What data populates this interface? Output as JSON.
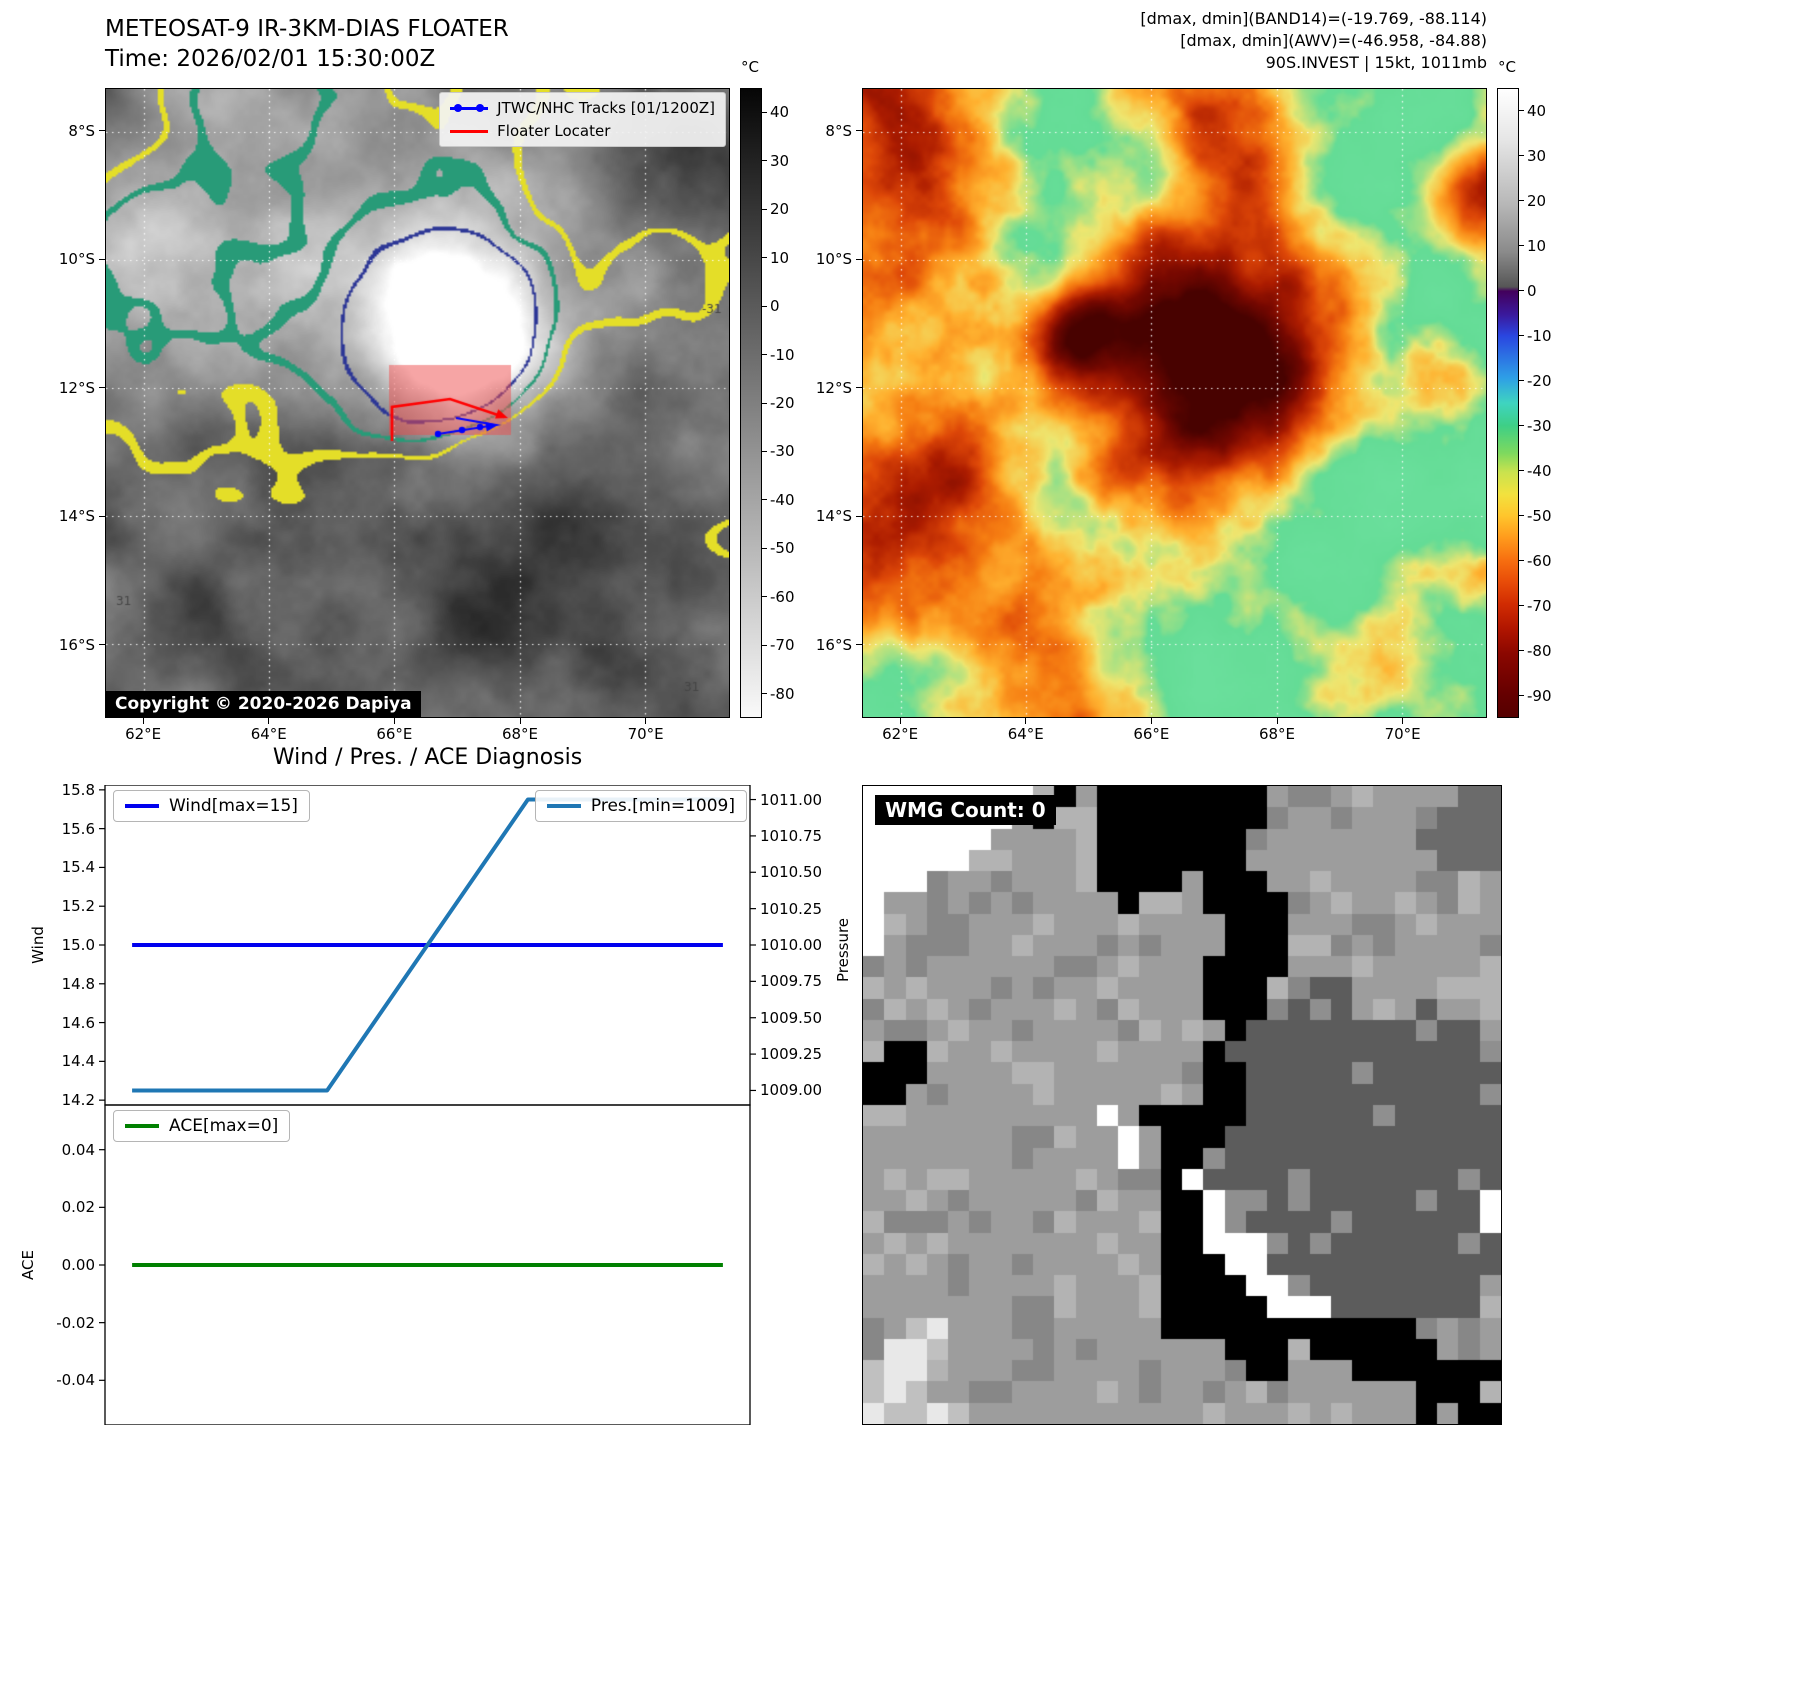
{
  "ir_panel": {
    "title_line1": "METEOSAT-9 IR-3KM-DIAS FLOATER",
    "title_line2": "Time: 2026/02/01 15:30:00Z",
    "legend": {
      "jtwc_label": "JTWC/NHC Tracks [01/1200Z]",
      "jtwc_color": "#0000ff",
      "floater_label": "Floater Locater",
      "floater_color": "#ff0000"
    },
    "floater_box_color": "#ee4b4b",
    "copyright": "Copyright © 2020-2026 Dapiya",
    "contour_labels": [
      "31",
      "-31",
      "31"
    ],
    "colorbar": {
      "unit": "°C",
      "ticks": [
        "40",
        "30",
        "20",
        "10",
        "0",
        "-10",
        "-20",
        "-30",
        "-40",
        "-50",
        "-60",
        "-70",
        "-80"
      ]
    },
    "x_ticks": [
      "62°E",
      "64°E",
      "66°E",
      "68°E",
      "70°E"
    ],
    "y_ticks": [
      "8°S",
      "10°S",
      "12°S",
      "14°S",
      "16°S"
    ]
  },
  "awv_panel": {
    "header_lines": [
      "[dmax, dmin](BAND14)=(-19.769, -88.114)",
      "[dmax, dmin](AWV)=(-46.958, -84.88)",
      "90S.INVEST | 15kt, 1011mb"
    ],
    "colorbar": {
      "unit": "°C",
      "ticks": [
        "40",
        "30",
        "20",
        "10",
        "0",
        "-10",
        "-20",
        "-30",
        "-40",
        "-50",
        "-60",
        "-70",
        "-80",
        "-90"
      ]
    },
    "x_ticks": [
      "62°E",
      "64°E",
      "66°E",
      "68°E",
      "70°E"
    ],
    "y_ticks": [
      "8°S",
      "10°S",
      "12°S",
      "14°S",
      "16°S"
    ]
  },
  "chart_data": {
    "type": "line",
    "title": "Wind / Pres. / ACE Diagnosis",
    "subplots": [
      {
        "left_axis": {
          "label": "Wind",
          "ticks": [
            "15.8",
            "15.6",
            "15.4",
            "15.2",
            "15.0",
            "14.8",
            "14.6",
            "14.4",
            "14.2"
          ],
          "range": [
            14.175,
            15.825
          ]
        },
        "right_axis": {
          "label": "Pressure",
          "ticks": [
            "1011.00",
            "1010.75",
            "1010.50",
            "1010.25",
            "1010.00",
            "1009.75",
            "1009.50",
            "1009.25",
            "1009.00"
          ],
          "range": [
            1008.9,
            1011.1
          ]
        },
        "series": [
          {
            "name": "Wind[max=15]",
            "color": "#0000ee",
            "axis": "left",
            "x": [
              0,
              1
            ],
            "y": [
              15,
              15
            ]
          },
          {
            "name": "Pres.[min=1009]",
            "color": "#1f77b4",
            "axis": "right",
            "x": [
              0,
              0.33,
              0.67,
              1
            ],
            "y": [
              1009,
              1009,
              1011,
              1011
            ]
          }
        ]
      },
      {
        "left_axis": {
          "label": "ACE",
          "ticks": [
            "0.04",
            "0.02",
            "0.00",
            "-0.02",
            "-0.04"
          ],
          "range": [
            -0.0555,
            0.0555
          ]
        },
        "series": [
          {
            "name": "ACE[max=0]",
            "color": "#008000",
            "axis": "left",
            "x": [
              0,
              1
            ],
            "y": [
              0,
              0
            ]
          }
        ]
      }
    ]
  },
  "wmg_panel": {
    "count_label": "WMG Count: 0"
  }
}
